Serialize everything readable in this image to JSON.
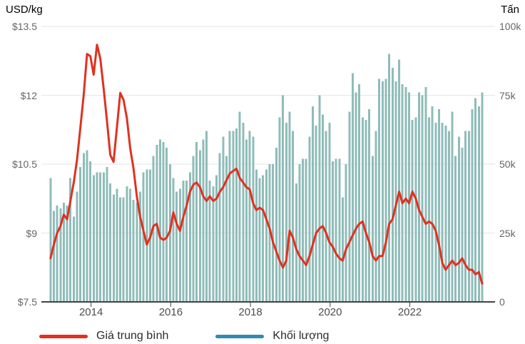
{
  "axes": {
    "left": {
      "title": "USD/kg",
      "ticks": [
        "$13.5",
        "$12",
        "$10.5",
        "$9",
        "$7.5"
      ],
      "range": [
        7.5,
        13.5
      ]
    },
    "right": {
      "title": "Tấn",
      "ticks": [
        "100k",
        "75k",
        "50k",
        "25k",
        "0"
      ],
      "range": [
        0,
        100000
      ]
    },
    "x": {
      "ticks": [
        "2014",
        "2016",
        "2018",
        "2020",
        "2022"
      ]
    }
  },
  "legend": {
    "items": [
      {
        "label": "Giá trung bình",
        "color": "#e03120"
      },
      {
        "label": "Khối lượng",
        "color": "#2e8cb3"
      }
    ]
  },
  "colors": {
    "bar": "#8fbcb9",
    "price_line": "#e03120",
    "legend_volume_swatch": "#2e8cb3",
    "gridline": "#e6e6e6",
    "axis_line": "#424242",
    "tick_text": "#666666",
    "year_text": "#4d4d4d"
  },
  "chart_data": {
    "type": "bar+line combo",
    "x_start": "2013-01",
    "x_end": "2023-11",
    "x_step": "month",
    "point_count": 131,
    "grid": "horizontal gridlines on",
    "legend_position": "bottom-left",
    "left_axis": {
      "label": "USD/kg",
      "range": [
        7.5,
        13.5
      ],
      "tick_step": 1.5
    },
    "right_axis": {
      "label": "Tấn",
      "range": [
        0,
        100000
      ],
      "tick_step": 25000
    },
    "x_tick_years": [
      2014,
      2016,
      2018,
      2020,
      2022
    ],
    "series": [
      {
        "name": "Giá trung bình",
        "type": "line",
        "axis": "left",
        "unit": "USD/kg",
        "color": "#e03120",
        "values": [
          8.45,
          8.75,
          9.0,
          9.15,
          9.4,
          9.3,
          9.7,
          10.1,
          10.6,
          11.3,
          12.0,
          12.9,
          12.85,
          12.45,
          13.1,
          12.8,
          12.15,
          11.45,
          10.7,
          10.55,
          11.3,
          12.05,
          11.9,
          11.5,
          10.85,
          10.4,
          9.8,
          9.35,
          9.05,
          8.75,
          8.9,
          9.15,
          9.2,
          8.9,
          8.85,
          8.9,
          9.05,
          9.45,
          9.2,
          9.05,
          9.35,
          9.6,
          9.9,
          10.05,
          10.1,
          10.0,
          9.8,
          9.7,
          9.8,
          9.7,
          9.75,
          9.9,
          10.0,
          10.15,
          10.3,
          10.35,
          10.4,
          10.2,
          10.1,
          10.0,
          9.95,
          9.65,
          9.5,
          9.55,
          9.5,
          9.3,
          9.1,
          8.8,
          8.6,
          8.4,
          8.25,
          8.4,
          9.05,
          8.9,
          8.65,
          8.5,
          8.4,
          8.3,
          8.5,
          8.75,
          9.0,
          9.1,
          9.15,
          9.0,
          8.8,
          8.7,
          8.55,
          8.45,
          8.4,
          8.65,
          8.8,
          8.95,
          9.1,
          9.2,
          9.25,
          9.0,
          8.8,
          8.5,
          8.4,
          8.5,
          8.5,
          8.8,
          9.2,
          9.3,
          9.6,
          9.9,
          9.65,
          9.75,
          9.65,
          9.9,
          9.75,
          9.5,
          9.35,
          9.2,
          9.25,
          9.2,
          9.05,
          8.75,
          8.35,
          8.2,
          8.3,
          8.4,
          8.3,
          8.35,
          8.45,
          8.3,
          8.2,
          8.2,
          8.1,
          8.15,
          7.9
        ]
      },
      {
        "name": "Khối lượng",
        "type": "bar",
        "axis": "right",
        "unit": "tấn (thousands)",
        "color": "#8fbcb9",
        "values_k": [
          45,
          33,
          35,
          34,
          36,
          35,
          45,
          31,
          40,
          49,
          54,
          55,
          51,
          46,
          47,
          47,
          47,
          49,
          43,
          39,
          41,
          38,
          38,
          42,
          41,
          37,
          36,
          40,
          47,
          48,
          48,
          53,
          57,
          59,
          58,
          56,
          50,
          45,
          40,
          41,
          44,
          44,
          47,
          53,
          58,
          55,
          59,
          62,
          44,
          42,
          46,
          54,
          60,
          53,
          62,
          62,
          63,
          69,
          65,
          59,
          62,
          60,
          48,
          45,
          46,
          48,
          50,
          50,
          56,
          67,
          75,
          65,
          69,
          62,
          43,
          50,
          52,
          52,
          60,
          71,
          64,
          75,
          68,
          62,
          65,
          51,
          52,
          52,
          38,
          50,
          69,
          83,
          76,
          79,
          67,
          66,
          70,
          53,
          62,
          81,
          80,
          81,
          90,
          85,
          80,
          88,
          79,
          78,
          76,
          66,
          67,
          76,
          75,
          78,
          67,
          71,
          65,
          70,
          65,
          64,
          62,
          69,
          53,
          60,
          56,
          62,
          62,
          70,
          74,
          71,
          76
        ]
      }
    ]
  }
}
